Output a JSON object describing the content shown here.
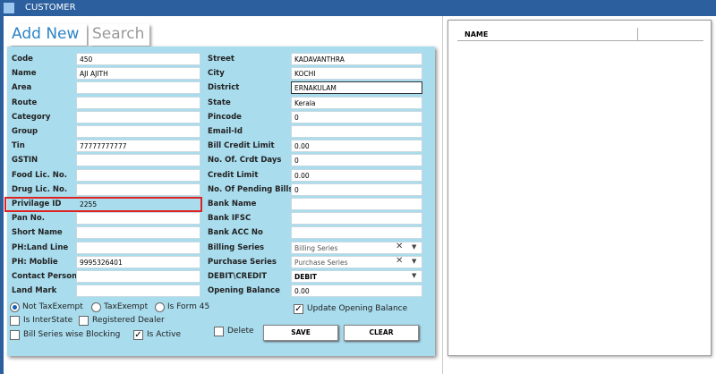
{
  "window": {
    "title": "CUSTOMER"
  },
  "tabs": [
    "Add New",
    "Search"
  ],
  "left_fields": [
    {
      "label": "Code",
      "value": "450"
    },
    {
      "label": "Name",
      "value": "AJI AJITH"
    },
    {
      "label": "Area"
    },
    {
      "label": "Route"
    },
    {
      "label": "Category"
    },
    {
      "label": "Group"
    },
    {
      "label": "Tin",
      "value": "77777777777"
    },
    {
      "label": "GSTIN"
    },
    {
      "label": "Food Lic. No."
    },
    {
      "label": "Drug Lic. No."
    },
    {
      "label": "Privilage ID",
      "value": "2255",
      "highlighted": true
    },
    {
      "label": "Pan No."
    },
    {
      "label": "Short Name"
    },
    {
      "label": "PH:Land Line"
    },
    {
      "label": "PH: Moblie",
      "value": "9995326401"
    },
    {
      "label": "Contact Person"
    },
    {
      "label": "Land Mark"
    }
  ],
  "right_fields": [
    {
      "label": "Street",
      "value": "KADAVANTHRA"
    },
    {
      "label": "City",
      "value": "KOCHI"
    },
    {
      "label": "District",
      "value": "ERNAKULAM",
      "focused": true
    },
    {
      "label": "State",
      "value": "Kerala"
    },
    {
      "label": "Pincode",
      "value": "0"
    },
    {
      "label": "Email-Id"
    },
    {
      "label": "Bill Credit Limit",
      "value": "0.00"
    },
    {
      "label": "No. Of. Crdt Days",
      "value": "0"
    },
    {
      "label": "Credit Limit",
      "value": "0.00"
    },
    {
      "label": "No. Of Pending Bills",
      "value": "0"
    },
    {
      "label": "Bank Name"
    },
    {
      "label": "Bank IFSC"
    },
    {
      "label": "Bank ACC No"
    },
    {
      "label": "Billing Series",
      "value": "Billing Series",
      "combo": true,
      "clearable": true
    },
    {
      "label": "Purchase Series",
      "value": "Purchase Series",
      "combo": true,
      "clearable": true
    },
    {
      "label": "DEBIT\\CREDIT",
      "value": "DEBIT",
      "combo": true
    },
    {
      "label": "Opening Balance",
      "value": "0.00"
    }
  ],
  "radios": [
    {
      "label": "Not TaxExempt",
      "checked": true
    },
    {
      "label": "TaxExempt",
      "checked": false
    },
    {
      "label": "Is Form 45",
      "checked": false
    }
  ],
  "checkboxes": [
    {
      "label": "Update Opening Balance",
      "checked": true
    },
    {
      "label": "Is InterState",
      "checked": false
    },
    {
      "label": "Registered Dealer",
      "checked": false
    },
    {
      "label": "Bill Series wise Blocking",
      "checked": false
    },
    {
      "label": "Is Active",
      "checked": true
    },
    {
      "label": "Delete",
      "checked": false
    }
  ],
  "buttons": [
    "SAVE",
    "CLEAR"
  ],
  "list": {
    "columns": [
      "NAME"
    ]
  }
}
